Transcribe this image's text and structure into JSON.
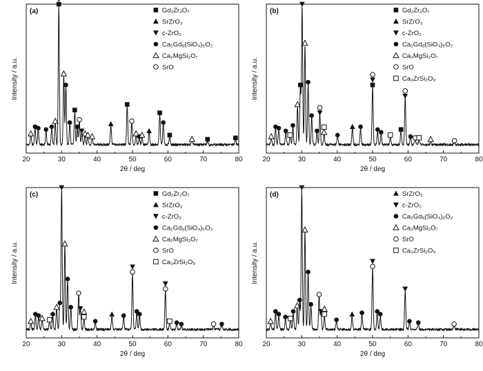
{
  "figure": {
    "panel_ids": [
      "a",
      "b",
      "c",
      "d"
    ]
  },
  "chart_data": [
    {
      "type": "line",
      "panel_label": "(a)",
      "xlabel": "2θ / deg",
      "ylabel": "Intensity / a.u.",
      "xlim": [
        20,
        80
      ],
      "xticks": [
        20,
        30,
        40,
        50,
        60,
        70,
        80
      ],
      "legend": [
        {
          "marker": "filled-square",
          "label": "Gd₂Zr₂O₇"
        },
        {
          "marker": "filled-triangle-up",
          "label": "SrZrO₃"
        },
        {
          "marker": "filled-triangle-down",
          "label": "c-ZrO₂"
        },
        {
          "marker": "filled-circle",
          "label": "Ca₂Gd₈(SiO₄)₆O₂"
        },
        {
          "marker": "open-triangle-up",
          "label": "Ca₂MgSi₂O₇"
        },
        {
          "marker": "open-circle",
          "label": "SrO"
        }
      ],
      "peaks": [
        {
          "x": 21.3,
          "y": 0.07,
          "markers": [
            "open-triangle-up"
          ]
        },
        {
          "x": 22.5,
          "y": 0.12,
          "markers": [
            "filled-circle"
          ]
        },
        {
          "x": 23.4,
          "y": 0.11,
          "markers": [
            "filled-circle"
          ]
        },
        {
          "x": 25.6,
          "y": 0.1,
          "markers": [
            "filled-circle"
          ]
        },
        {
          "x": 27.2,
          "y": 0.12,
          "markers": [
            "filled-circle"
          ]
        },
        {
          "x": 28.2,
          "y": 0.16,
          "markers": [
            "open-triangle-up"
          ]
        },
        {
          "x": 29.2,
          "y": 1.0,
          "markers": [
            "filled-square",
            "filled-triangle-down"
          ]
        },
        {
          "x": 30.6,
          "y": 0.5,
          "markers": [
            "open-triangle-up"
          ]
        },
        {
          "x": 31.2,
          "y": 0.42,
          "markers": [
            "filled-circle"
          ]
        },
        {
          "x": 32.3,
          "y": 0.15,
          "markers": [
            "filled-circle"
          ]
        },
        {
          "x": 33.7,
          "y": 0.24,
          "markers": [
            "filled-square"
          ]
        },
        {
          "x": 34.4,
          "y": 0.12,
          "markers": [
            "filled-circle"
          ]
        },
        {
          "x": 35.0,
          "y": 0.17,
          "markers": [
            "open-circle"
          ]
        },
        {
          "x": 35.7,
          "y": 0.09,
          "markers": [
            "filled-triangle-down"
          ]
        },
        {
          "x": 36.6,
          "y": 0.07,
          "markers": [
            "open-triangle-up"
          ]
        },
        {
          "x": 37.4,
          "y": 0.06,
          "markers": [
            "open-triangle-up"
          ]
        },
        {
          "x": 38.6,
          "y": 0.05,
          "markers": [
            "open-triangle-up"
          ]
        },
        {
          "x": 43.9,
          "y": 0.14,
          "markers": [
            "filled-triangle-up"
          ]
        },
        {
          "x": 48.5,
          "y": 0.28,
          "markers": [
            "filled-square"
          ]
        },
        {
          "x": 49.8,
          "y": 0.16,
          "markers": [
            "open-circle"
          ]
        },
        {
          "x": 51.0,
          "y": 0.07,
          "markers": [
            "open-triangle-up"
          ]
        },
        {
          "x": 51.9,
          "y": 0.05,
          "markers": [
            "filled-circle"
          ]
        },
        {
          "x": 52.7,
          "y": 0.06,
          "markers": [
            "open-triangle-up"
          ]
        },
        {
          "x": 54.7,
          "y": 0.09,
          "markers": [
            "filled-triangle-up"
          ]
        },
        {
          "x": 57.7,
          "y": 0.22,
          "markers": [
            "filled-square"
          ]
        },
        {
          "x": 58.7,
          "y": 0.15,
          "markers": [
            "filled-circle"
          ]
        },
        {
          "x": 60.5,
          "y": 0.06,
          "markers": [
            "filled-square"
          ]
        },
        {
          "x": 66.8,
          "y": 0.03,
          "markers": [
            "open-triangle-up"
          ]
        },
        {
          "x": 71.2,
          "y": 0.03,
          "markers": [
            "filled-square"
          ]
        },
        {
          "x": 79.1,
          "y": 0.04,
          "markers": [
            "filled-square"
          ]
        }
      ]
    },
    {
      "type": "line",
      "panel_label": "(b)",
      "xlabel": "2θ / deg",
      "ylabel": "Intensity / a.u.",
      "xlim": [
        20,
        80
      ],
      "xticks": [
        20,
        30,
        40,
        50,
        60,
        70,
        80
      ],
      "legend": [
        {
          "marker": "filled-square",
          "label": "Gd₂Zr₂O₇"
        },
        {
          "marker": "filled-triangle-up",
          "label": "SrZrO₃"
        },
        {
          "marker": "filled-triangle-down",
          "label": "c-ZrO₂"
        },
        {
          "marker": "filled-circle",
          "label": "Ca₂Gd₈(SiO₄)₆O₂"
        },
        {
          "marker": "open-triangle-up",
          "label": "Ca₂MgSi₂O₇"
        },
        {
          "marker": "open-circle",
          "label": "SrO"
        },
        {
          "marker": "open-square",
          "label": "Ca₃ZrSi₂O₉"
        }
      ],
      "peaks": [
        {
          "x": 21.4,
          "y": 0.05,
          "markers": [
            "open-triangle-up"
          ]
        },
        {
          "x": 22.6,
          "y": 0.12,
          "markers": [
            "filled-circle"
          ]
        },
        {
          "x": 23.5,
          "y": 0.11,
          "markers": [
            "filled-circle"
          ]
        },
        {
          "x": 25.5,
          "y": 0.09,
          "markers": [
            "filled-circle"
          ]
        },
        {
          "x": 26.7,
          "y": 0.06,
          "markers": [
            "open-square"
          ]
        },
        {
          "x": 27.5,
          "y": 0.13,
          "markers": [
            "filled-circle"
          ]
        },
        {
          "x": 28.8,
          "y": 0.28,
          "markers": [
            "open-triangle-up"
          ]
        },
        {
          "x": 29.6,
          "y": 0.42,
          "markers": [
            "filled-square"
          ]
        },
        {
          "x": 30.1,
          "y": 1.0,
          "markers": [
            "filled-triangle-down"
          ]
        },
        {
          "x": 30.9,
          "y": 0.72,
          "markers": [
            "open-triangle-up"
          ]
        },
        {
          "x": 31.8,
          "y": 0.44,
          "markers": [
            "filled-circle"
          ]
        },
        {
          "x": 32.8,
          "y": 0.2,
          "markers": [
            "filled-circle"
          ]
        },
        {
          "x": 34.3,
          "y": 0.09,
          "markers": [
            "filled-circle"
          ]
        },
        {
          "x": 35.1,
          "y": 0.22,
          "markers": [
            "filled-triangle-down",
            "open-circle"
          ]
        },
        {
          "x": 36.3,
          "y": 0.08,
          "markers": [
            "open-triangle-up",
            "open-square"
          ]
        },
        {
          "x": 40.1,
          "y": 0.06,
          "markers": [
            "filled-circle"
          ]
        },
        {
          "x": 44.3,
          "y": 0.12,
          "markers": [
            "filled-triangle-up"
          ]
        },
        {
          "x": 46.6,
          "y": 0.12,
          "markers": [
            "filled-circle"
          ]
        },
        {
          "x": 50.0,
          "y": 0.42,
          "markers": [
            "filled-square",
            "filled-triangle-down",
            "open-circle"
          ]
        },
        {
          "x": 51.4,
          "y": 0.1,
          "markers": [
            "filled-circle"
          ]
        },
        {
          "x": 52.4,
          "y": 0.08,
          "markers": [
            "filled-circle"
          ]
        },
        {
          "x": 55.0,
          "y": 0.06,
          "markers": [
            "open-square"
          ]
        },
        {
          "x": 58.0,
          "y": 0.1,
          "markers": [
            "filled-square"
          ]
        },
        {
          "x": 59.2,
          "y": 0.34,
          "markers": [
            "filled-triangle-down",
            "open-circle"
          ]
        },
        {
          "x": 60.7,
          "y": 0.05,
          "markers": [
            "filled-circle"
          ]
        },
        {
          "x": 62.0,
          "y": 0.04,
          "markers": [
            "open-circle"
          ]
        },
        {
          "x": 63.1,
          "y": 0.04,
          "markers": [
            "open-square"
          ]
        },
        {
          "x": 66.4,
          "y": 0.03,
          "markers": [
            "open-triangle-up"
          ]
        },
        {
          "x": 73.1,
          "y": 0.02,
          "markers": [
            "open-circle"
          ]
        }
      ]
    },
    {
      "type": "line",
      "panel_label": "(c)",
      "xlabel": "2θ / deg",
      "ylabel": "Intensity / a.u.",
      "xlim": [
        20,
        80
      ],
      "xticks": [
        20,
        30,
        40,
        50,
        60,
        70,
        80
      ],
      "legend": [
        {
          "marker": "filled-square",
          "label": "Gd₂Zr₂O₇"
        },
        {
          "marker": "filled-triangle-up",
          "label": "SrZrO₃"
        },
        {
          "marker": "filled-triangle-down",
          "label": "c-ZrO₂"
        },
        {
          "marker": "filled-circle",
          "label": "Ca₂Gd₈(SiO₄)₆O₂"
        },
        {
          "marker": "open-triangle-up",
          "label": "Ca₂MgSi₂O₇"
        },
        {
          "marker": "open-circle",
          "label": "SrO"
        },
        {
          "marker": "open-square",
          "label": "Ca₃ZrSi₂O₉"
        }
      ],
      "peaks": [
        {
          "x": 21.3,
          "y": 0.05,
          "markers": [
            "open-triangle-up"
          ]
        },
        {
          "x": 22.6,
          "y": 0.1,
          "markers": [
            "filled-circle"
          ]
        },
        {
          "x": 23.5,
          "y": 0.09,
          "markers": [
            "filled-circle"
          ]
        },
        {
          "x": 24.5,
          "y": 0.07,
          "markers": [
            "open-triangle-up"
          ]
        },
        {
          "x": 26.6,
          "y": 0.06,
          "markers": [
            "open-square"
          ]
        },
        {
          "x": 27.5,
          "y": 0.1,
          "markers": [
            "filled-circle"
          ]
        },
        {
          "x": 28.6,
          "y": 0.15,
          "markers": [
            "open-triangle-up"
          ]
        },
        {
          "x": 29.5,
          "y": 0.18,
          "markers": [
            "filled-circle"
          ]
        },
        {
          "x": 30.0,
          "y": 1.0,
          "markers": [
            "filled-triangle-down"
          ]
        },
        {
          "x": 30.9,
          "y": 0.6,
          "markers": [
            "open-triangle-up"
          ]
        },
        {
          "x": 31.7,
          "y": 0.35,
          "markers": [
            "filled-circle"
          ]
        },
        {
          "x": 32.6,
          "y": 0.15,
          "markers": [
            "filled-circle"
          ]
        },
        {
          "x": 34.8,
          "y": 0.25,
          "markers": [
            "open-circle"
          ]
        },
        {
          "x": 35.3,
          "y": 0.14,
          "markers": [
            "filled-triangle-down"
          ]
        },
        {
          "x": 36.3,
          "y": 0.08,
          "markers": [
            "open-square",
            "open-triangle-up"
          ]
        },
        {
          "x": 39.5,
          "y": 0.05,
          "markers": [
            "filled-circle"
          ]
        },
        {
          "x": 44.2,
          "y": 0.1,
          "markers": [
            "filled-triangle-up"
          ]
        },
        {
          "x": 47.5,
          "y": 0.09,
          "markers": [
            "filled-circle"
          ]
        },
        {
          "x": 50.0,
          "y": 0.4,
          "markers": [
            "open-circle",
            "filled-triangle-down"
          ]
        },
        {
          "x": 51.2,
          "y": 0.12,
          "markers": [
            "filled-circle"
          ]
        },
        {
          "x": 52.0,
          "y": 0.1,
          "markers": [
            "filled-circle"
          ]
        },
        {
          "x": 59.3,
          "y": 0.28,
          "markers": [
            "open-circle",
            "filled-triangle-down"
          ]
        },
        {
          "x": 60.5,
          "y": 0.05,
          "markers": [
            "open-square"
          ]
        },
        {
          "x": 62.5,
          "y": 0.04,
          "markers": [
            "filled-circle"
          ]
        },
        {
          "x": 63.8,
          "y": 0.03,
          "markers": [
            "filled-circle"
          ]
        },
        {
          "x": 72.9,
          "y": 0.03,
          "markers": [
            "open-circle"
          ]
        },
        {
          "x": 75.2,
          "y": 0.03,
          "markers": [
            "filled-circle"
          ]
        }
      ]
    },
    {
      "type": "line",
      "panel_label": "(d)",
      "xlabel": "2θ / deg",
      "ylabel": "Intensity / a.u.",
      "xlim": [
        20,
        80
      ],
      "xticks": [
        20,
        30,
        40,
        50,
        60,
        70,
        80
      ],
      "legend": [
        {
          "marker": "filled-triangle-up",
          "label": "SrZrO₃"
        },
        {
          "marker": "filled-triangle-down",
          "label": "c-ZrO₂"
        },
        {
          "marker": "filled-circle",
          "label": "Ca₂Gd₈(SiO₄)₆O₂"
        },
        {
          "marker": "open-triangle-up",
          "label": "Ca₂MgSi₂O₇"
        },
        {
          "marker": "open-circle",
          "label": "SrO"
        },
        {
          "marker": "open-square",
          "label": "Ca₃ZrSi₂O₉"
        }
      ],
      "peaks": [
        {
          "x": 21.2,
          "y": 0.05,
          "markers": [
            "open-triangle-up"
          ]
        },
        {
          "x": 22.6,
          "y": 0.12,
          "markers": [
            "filled-circle"
          ]
        },
        {
          "x": 23.5,
          "y": 0.1,
          "markers": [
            "filled-circle"
          ]
        },
        {
          "x": 25.4,
          "y": 0.08,
          "markers": [
            "filled-circle"
          ]
        },
        {
          "x": 26.8,
          "y": 0.07,
          "markers": [
            "open-square"
          ]
        },
        {
          "x": 27.6,
          "y": 0.12,
          "markers": [
            "filled-circle"
          ]
        },
        {
          "x": 28.7,
          "y": 0.16,
          "markers": [
            "open-triangle-up"
          ]
        },
        {
          "x": 29.4,
          "y": 0.2,
          "markers": [
            "filled-circle"
          ]
        },
        {
          "x": 30.0,
          "y": 1.0,
          "markers": [
            "filled-triangle-down"
          ]
        },
        {
          "x": 30.9,
          "y": 0.7,
          "markers": [
            "open-triangle-up"
          ]
        },
        {
          "x": 31.8,
          "y": 0.4,
          "markers": [
            "filled-circle"
          ]
        },
        {
          "x": 32.6,
          "y": 0.17,
          "markers": [
            "filled-circle"
          ]
        },
        {
          "x": 34.9,
          "y": 0.24,
          "markers": [
            "open-circle"
          ]
        },
        {
          "x": 35.4,
          "y": 0.12,
          "markers": [
            "filled-triangle-down"
          ]
        },
        {
          "x": 36.4,
          "y": 0.1,
          "markers": [
            "open-square",
            "open-triangle-up"
          ]
        },
        {
          "x": 39.8,
          "y": 0.06,
          "markers": [
            "filled-circle"
          ]
        },
        {
          "x": 44.2,
          "y": 0.1,
          "markers": [
            "filled-triangle-up"
          ]
        },
        {
          "x": 47.0,
          "y": 0.11,
          "markers": [
            "filled-circle"
          ]
        },
        {
          "x": 50.0,
          "y": 0.44,
          "markers": [
            "open-circle",
            "filled-triangle-down"
          ]
        },
        {
          "x": 51.3,
          "y": 0.12,
          "markers": [
            "filled-circle"
          ]
        },
        {
          "x": 52.2,
          "y": 0.1,
          "markers": [
            "filled-circle"
          ]
        },
        {
          "x": 59.2,
          "y": 0.28,
          "markers": [
            "filled-triangle-down"
          ]
        },
        {
          "x": 60.4,
          "y": 0.05,
          "markers": [
            "filled-circle"
          ]
        },
        {
          "x": 62.9,
          "y": 0.04,
          "markers": [
            "filled-circle"
          ]
        },
        {
          "x": 73.0,
          "y": 0.03,
          "markers": [
            "open-circle"
          ]
        }
      ]
    }
  ]
}
